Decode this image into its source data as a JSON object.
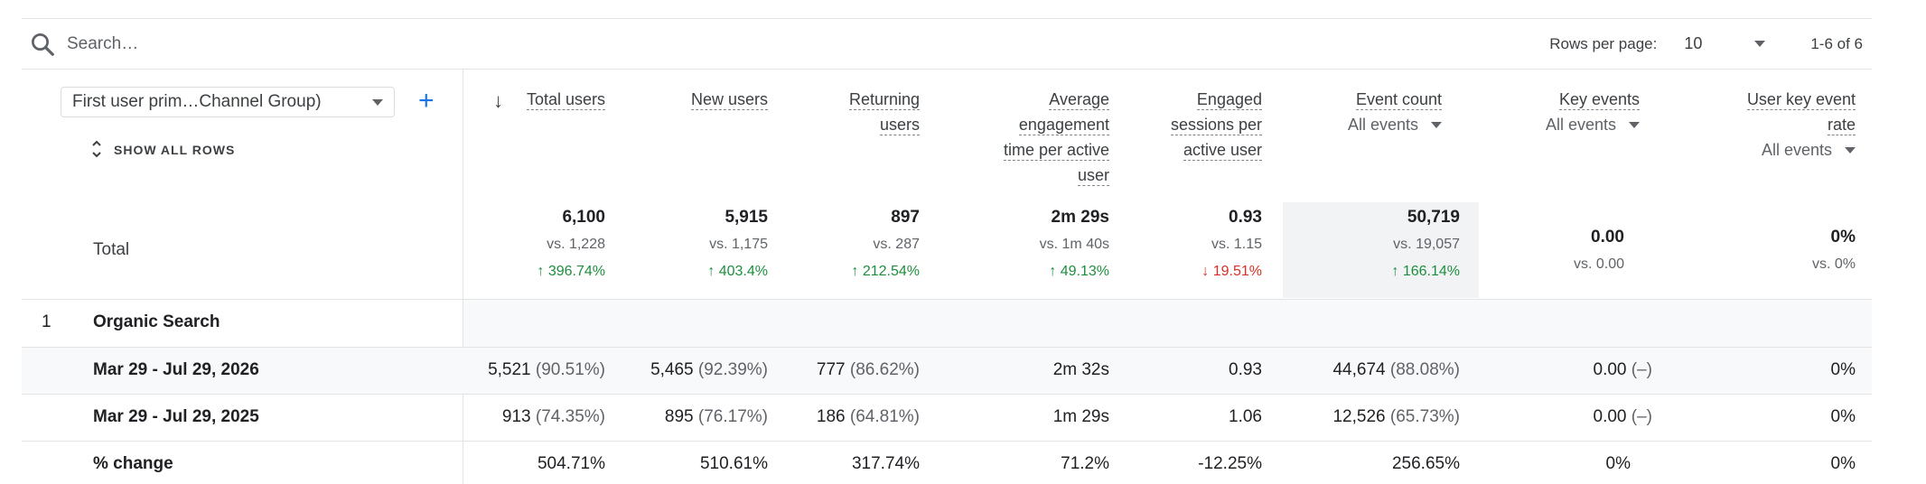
{
  "search": {
    "placeholder": "Search…"
  },
  "pagination": {
    "rows_per_page_label": "Rows per page:",
    "rows_per_page_value": "10",
    "range": "1-6 of 6"
  },
  "dimension": {
    "select_label": "First user prim…Channel Group)",
    "show_all_rows": "SHOW ALL ROWS"
  },
  "columns": [
    {
      "l1": "Total users"
    },
    {
      "l1": "New users"
    },
    {
      "l1": "Returning",
      "l2": "users"
    },
    {
      "l1": "Average",
      "l2": "engagement",
      "l3": "time per active",
      "l4": "user"
    },
    {
      "l1": "Engaged",
      "l2": "sessions per",
      "l3": "active user"
    },
    {
      "l1": "Event count",
      "sub": "All events"
    },
    {
      "l1": "Key events",
      "sub": "All events"
    },
    {
      "l1": "User key event",
      "l2": "rate",
      "sub": "All events"
    }
  ],
  "totals": {
    "label": "Total",
    "cells": [
      {
        "main": "6,100",
        "vs": "vs. 1,228",
        "change": "↑ 396.74%"
      },
      {
        "main": "5,915",
        "vs": "vs. 1,175",
        "change": "↑ 403.4%"
      },
      {
        "main": "897",
        "vs": "vs. 287",
        "change": "↑ 212.54%"
      },
      {
        "main": "2m 29s",
        "vs": "vs. 1m 40s",
        "change": "↑ 49.13%"
      },
      {
        "main": "0.93",
        "vs": "vs. 1.15",
        "change": "↓ 19.51%"
      },
      {
        "main": "50,719",
        "vs": "vs. 19,057",
        "change": "↑ 166.14%"
      },
      {
        "main": "0.00",
        "vs": "vs. 0.00"
      },
      {
        "main": "0%",
        "vs": "vs. 0%"
      }
    ]
  },
  "group": {
    "index": "1",
    "name": "Organic Search"
  },
  "rows": [
    {
      "label": "Mar 29 - Jul 29, 2026",
      "cells": [
        {
          "v": "5,521",
          "p": "(90.51%)"
        },
        {
          "v": "5,465",
          "p": "(92.39%)"
        },
        {
          "v": "777",
          "p": "(86.62%)"
        },
        {
          "v": "2m 32s"
        },
        {
          "v": "0.93"
        },
        {
          "v": "44,674",
          "p": "(88.08%)"
        },
        {
          "v": "0.00",
          "p": "(–)"
        },
        {
          "v": "0%"
        }
      ]
    },
    {
      "label": "Mar 29 - Jul 29, 2025",
      "cells": [
        {
          "v": "913",
          "p": "(74.35%)"
        },
        {
          "v": "895",
          "p": "(76.17%)"
        },
        {
          "v": "186",
          "p": "(64.81%)"
        },
        {
          "v": "1m 29s"
        },
        {
          "v": "1.06"
        },
        {
          "v": "12,526",
          "p": "(65.73%)"
        },
        {
          "v": "0.00",
          "p": "(–)"
        },
        {
          "v": "0%"
        }
      ]
    },
    {
      "label": "% change",
      "cells": [
        {
          "v": "504.71%"
        },
        {
          "v": "510.61%"
        },
        {
          "v": "317.74%"
        },
        {
          "v": "71.2%"
        },
        {
          "v": "-12.25%"
        },
        {
          "v": "256.65%"
        },
        {
          "v": "0%"
        },
        {
          "v": "0%"
        }
      ]
    }
  ],
  "colors": {
    "accent": "#1a73e8",
    "up": "#1e8e3e",
    "down": "#d93025"
  }
}
